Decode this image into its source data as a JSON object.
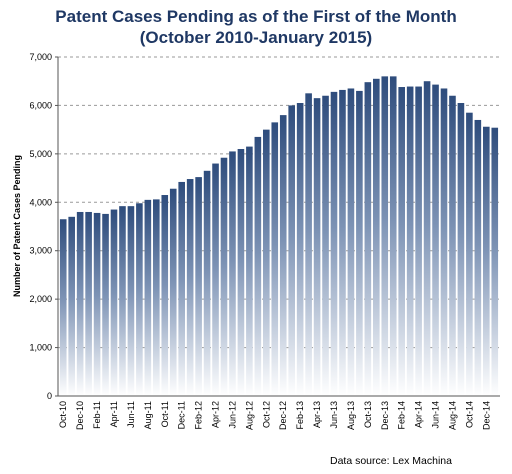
{
  "chart_data": {
    "type": "bar",
    "title": "Patent Cases Pending as of the First of the Month",
    "subtitle": "(October 2010-January 2015)",
    "xlabel": "",
    "ylabel": "Number of Patent Cases Pending",
    "ylim": [
      0,
      7000
    ],
    "yticks": [
      0,
      1000,
      2000,
      3000,
      4000,
      5000,
      6000,
      7000
    ],
    "ytick_labels": [
      "0",
      "1,000",
      "2,000",
      "3,000",
      "4,000",
      "5,000",
      "6,000",
      "7,000"
    ],
    "grid": "horizontal dashed",
    "legend": "none",
    "source": "Data source: Lex Machina",
    "colors": {
      "bar_top": "#2e4c7c",
      "bar_bottom": "#ffffff",
      "title": "#1f3864"
    },
    "x_tick_labels": [
      "Oct-10",
      "Dec-10",
      "Feb-11",
      "Apr-11",
      "Jun-11",
      "Aug-11",
      "Oct-11",
      "Dec-11",
      "Feb-12",
      "Apr-12",
      "Jun-12",
      "Aug-12",
      "Oct-12",
      "Dec-12",
      "Feb-13",
      "Apr-13",
      "Jun-13",
      "Aug-13",
      "Oct-13",
      "Dec-13",
      "Feb-14",
      "Apr-14",
      "Jun-14",
      "Aug-14",
      "Oct-14",
      "Dec-14"
    ],
    "categories": [
      "Oct-10",
      "Nov-10",
      "Dec-10",
      "Jan-11",
      "Feb-11",
      "Mar-11",
      "Apr-11",
      "May-11",
      "Jun-11",
      "Jul-11",
      "Aug-11",
      "Sep-11",
      "Oct-11",
      "Nov-11",
      "Dec-11",
      "Jan-12",
      "Feb-12",
      "Mar-12",
      "Apr-12",
      "May-12",
      "Jun-12",
      "Jul-12",
      "Aug-12",
      "Sep-12",
      "Oct-12",
      "Nov-12",
      "Dec-12",
      "Jan-13",
      "Feb-13",
      "Mar-13",
      "Apr-13",
      "May-13",
      "Jun-13",
      "Jul-13",
      "Aug-13",
      "Sep-13",
      "Oct-13",
      "Nov-13",
      "Dec-13",
      "Jan-14",
      "Feb-14",
      "Mar-14",
      "Apr-14",
      "May-14",
      "Jun-14",
      "Jul-14",
      "Aug-14",
      "Sep-14",
      "Oct-14",
      "Nov-14",
      "Dec-14",
      "Jan-15"
    ],
    "values": [
      3650,
      3700,
      3800,
      3800,
      3780,
      3760,
      3850,
      3920,
      3920,
      3980,
      4050,
      4060,
      4150,
      4280,
      4420,
      4480,
      4520,
      4650,
      4800,
      4920,
      5050,
      5100,
      5150,
      5350,
      5500,
      5650,
      5800,
      6000,
      6050,
      6250,
      6150,
      6200,
      6280,
      6320,
      6350,
      6300,
      6480,
      6550,
      6600,
      6600,
      6380,
      6390,
      6390,
      6500,
      6430,
      6350,
      6200,
      6050,
      5850,
      5700,
      5560,
      5540
    ]
  }
}
